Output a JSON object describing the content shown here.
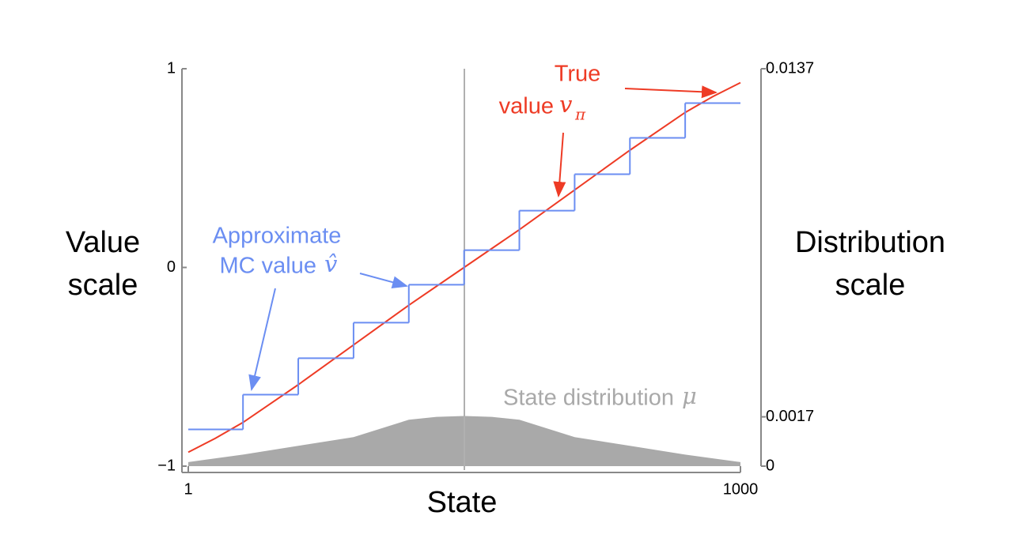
{
  "chart_data": {
    "type": "line",
    "xlabel": "State",
    "ylabel": [
      "Value",
      "scale"
    ],
    "y2label": [
      "Distribution",
      "scale"
    ],
    "xlim": [
      1,
      1000
    ],
    "xticks": [
      1,
      1000
    ],
    "ylim": [
      -1,
      1
    ],
    "yticks": [
      {
        "value": -1,
        "label": "−1"
      },
      0,
      1
    ],
    "y2lim": [
      0,
      0.0137
    ],
    "y2ticks": [
      0,
      0.0017,
      0.0137
    ],
    "series": [
      {
        "style": "line",
        "color": "#ee3b25",
        "x": [
          1,
          50,
          100,
          200,
          300,
          400,
          500,
          600,
          700,
          800,
          900,
          950,
          1000
        ],
        "values": [
          -0.93,
          -0.86,
          -0.78,
          -0.59,
          -0.39,
          -0.19,
          0,
          0.19,
          0.39,
          0.59,
          0.78,
          0.86,
          0.93
        ]
      },
      {
        "style": "step",
        "color": "#6b8ef2",
        "bins": [
          1,
          100,
          200,
          300,
          400,
          500,
          600,
          700,
          800,
          900,
          1000
        ],
        "values": [
          -0.815,
          -0.64,
          -0.457,
          -0.278,
          -0.087,
          0.087,
          0.286,
          0.469,
          0.652,
          0.827
        ]
      },
      {
        "style": "area",
        "axis": "y2",
        "color": "#a9a9a9",
        "x": [
          1,
          100,
          200,
          300,
          400,
          450,
          500,
          550,
          600,
          700,
          800,
          900,
          1000
        ],
        "values": [
          0.00014,
          0.0004,
          0.0007,
          0.001,
          0.0016,
          0.0017,
          0.00173,
          0.0017,
          0.0016,
          0.001,
          0.0007,
          0.0004,
          0.00014
        ]
      }
    ],
    "annotations": [
      {
        "text": "True"
      },
      {
        "text": "value",
        "math": "v",
        "sub": "π"
      },
      {
        "text": "Approximate"
      },
      {
        "text": "MC value",
        "math": "v̂"
      },
      {
        "text": "State distribution",
        "math": "μ"
      }
    ]
  }
}
